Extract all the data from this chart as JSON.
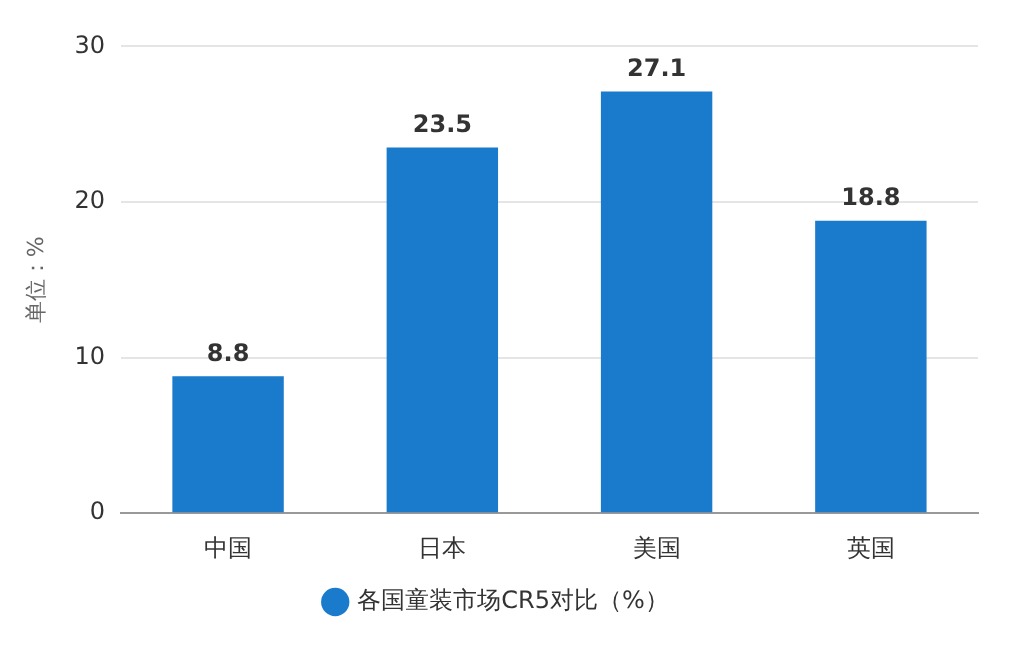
{
  "chart_data": {
    "type": "bar",
    "ylabel": "单位：%",
    "categories": [
      "中国",
      "日本",
      "美国",
      "英国"
    ],
    "series": [
      {
        "name": "各国童装市场CR5对比（%）",
        "color": "#1a7acb",
        "values": [
          8.8,
          23.5,
          27.1,
          18.8
        ]
      }
    ],
    "ylim": [
      0,
      30
    ],
    "yticks": [
      0,
      10,
      20,
      30
    ],
    "grid": "y",
    "legend": "bottom",
    "marker": "circle",
    "data_labels": true
  }
}
